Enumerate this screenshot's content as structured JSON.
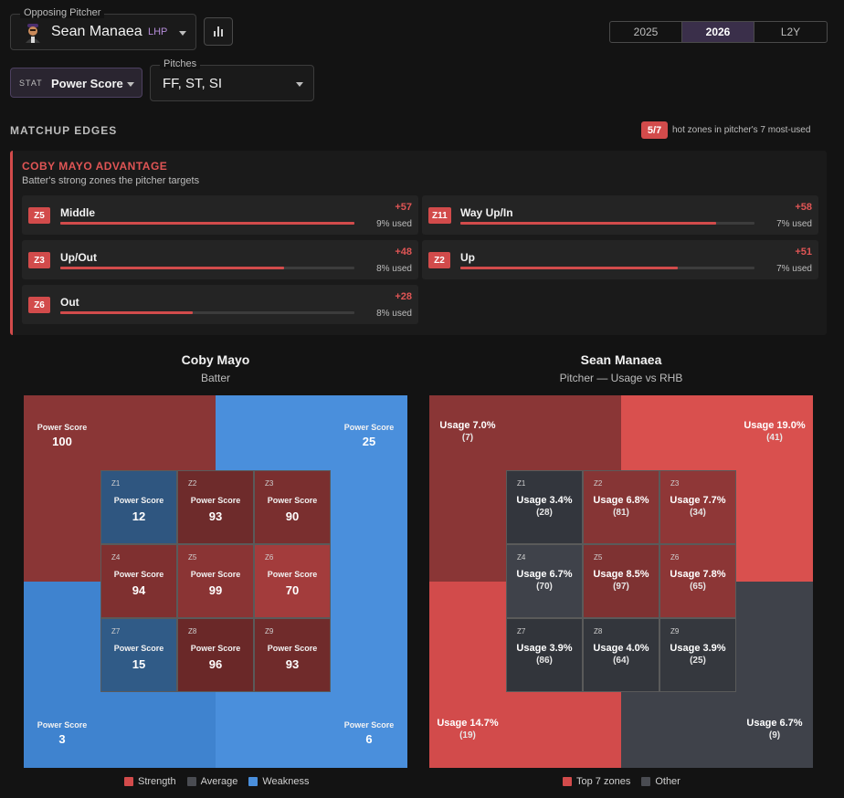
{
  "colors": {
    "strength": "#d24b4b",
    "average": "#4a4c52",
    "weakness": "#4a8fdc",
    "accent_purple": "#3a2f4a"
  },
  "opposing_pitcher": {
    "legend": "Opposing Pitcher",
    "name": "Sean Manaea",
    "hand": "LHP",
    "icon": "chevron-down-icon"
  },
  "season_tabs": [
    {
      "label": "2025",
      "active": false
    },
    {
      "label": "2026",
      "active": true
    },
    {
      "label": "L2Y",
      "active": false
    }
  ],
  "stat": {
    "tag": "STAT",
    "value": "Power Score"
  },
  "pitches": {
    "legend": "Pitches",
    "value": "FF, ST, SI"
  },
  "matchup": {
    "title": "MATCHUP EDGES",
    "hot_badge": "5/7",
    "hot_text": "hot zones in pitcher's 7 most-used",
    "advantage_title": "COBY MAYO ADVANTAGE",
    "advantage_sub": "Batter's strong zones the pitcher targets",
    "cards": [
      {
        "zone": "Z5",
        "label": "Middle",
        "delta": "+57",
        "used": "9% used",
        "fill": 1.0
      },
      {
        "zone": "Z11",
        "label": "Way Up/In",
        "delta": "+58",
        "used": "7% used",
        "fill": 0.87
      },
      {
        "zone": "Z3",
        "label": "Up/Out",
        "delta": "+48",
        "used": "8% used",
        "fill": 0.76
      },
      {
        "zone": "Z2",
        "label": "Up",
        "delta": "+51",
        "used": "7% used",
        "fill": 0.74
      },
      {
        "zone": "Z6",
        "label": "Out",
        "delta": "+28",
        "used": "8% used",
        "fill": 0.45
      }
    ]
  },
  "batter_panel": {
    "title": "Coby Mayo",
    "subtitle": "Batter",
    "outer": {
      "top_left": {
        "label": "Power Score",
        "value": "100",
        "level": "strength"
      },
      "top_right": {
        "label": "Power Score",
        "value": "25",
        "level": "weakness"
      },
      "bottom_left": {
        "label": "Power Score",
        "value": "3",
        "level": "weakness"
      },
      "bottom_right": {
        "label": "Power Score",
        "value": "6",
        "level": "weakness"
      }
    },
    "cells": [
      {
        "zone": "Z1",
        "label": "Power Score",
        "value": "12",
        "color": "#2f5680"
      },
      {
        "zone": "Z2",
        "label": "Power Score",
        "value": "93",
        "color": "#6e2b2b"
      },
      {
        "zone": "Z3",
        "label": "Power Score",
        "value": "90",
        "color": "#7a2f2f"
      },
      {
        "zone": "Z4",
        "label": "Power Score",
        "value": "94",
        "color": "#7f3030"
      },
      {
        "zone": "Z5",
        "label": "Power Score",
        "value": "99",
        "color": "#8a3434"
      },
      {
        "zone": "Z6",
        "label": "Power Score",
        "value": "70",
        "color": "#a33c3c"
      },
      {
        "zone": "Z7",
        "label": "Power Score",
        "value": "15",
        "color": "#305b87"
      },
      {
        "zone": "Z8",
        "label": "Power Score",
        "value": "96",
        "color": "#6a2828"
      },
      {
        "zone": "Z9",
        "label": "Power Score",
        "value": "93",
        "color": "#702b2b"
      }
    ],
    "legend": [
      {
        "label": "Strength",
        "color": "#d24b4b"
      },
      {
        "label": "Average",
        "color": "#4a4c52"
      },
      {
        "label": "Weakness",
        "color": "#4a8fdc"
      }
    ]
  },
  "pitcher_panel": {
    "title": "Sean Manaea",
    "subtitle": "Pitcher — Usage vs RHB",
    "outer": {
      "top_left": {
        "usage": "Usage 7.0%",
        "count": "(7)"
      },
      "top_right": {
        "usage": "Usage 19.0%",
        "count": "(41)"
      },
      "bottom_left": {
        "usage": "Usage 14.7%",
        "count": "(19)"
      },
      "bottom_right": {
        "usage": "Usage 6.7%",
        "count": "(9)"
      }
    },
    "cells": [
      {
        "zone": "Z1",
        "usage": "Usage 3.4%",
        "count": "(28)",
        "color": "#33363d"
      },
      {
        "zone": "Z2",
        "usage": "Usage 6.8%",
        "count": "(81)",
        "color": "#863535"
      },
      {
        "zone": "Z3",
        "usage": "Usage 7.7%",
        "count": "(34)",
        "color": "#8f3737"
      },
      {
        "zone": "Z4",
        "usage": "Usage 6.7%",
        "count": "(70)",
        "color": "#3f424a"
      },
      {
        "zone": "Z5",
        "usage": "Usage 8.5%",
        "count": "(97)",
        "color": "#7e3232"
      },
      {
        "zone": "Z6",
        "usage": "Usage 7.8%",
        "count": "(65)",
        "color": "#8c3636"
      },
      {
        "zone": "Z7",
        "usage": "Usage 3.9%",
        "count": "(86)",
        "color": "#32353b"
      },
      {
        "zone": "Z8",
        "usage": "Usage 4.0%",
        "count": "(64)",
        "color": "#33363c"
      },
      {
        "zone": "Z9",
        "usage": "Usage 3.9%",
        "count": "(25)",
        "color": "#35383e"
      }
    ],
    "legend": [
      {
        "label": "Top 7 zones",
        "color": "#d24b4b"
      },
      {
        "label": "Other",
        "color": "#4a4c52"
      }
    ]
  }
}
